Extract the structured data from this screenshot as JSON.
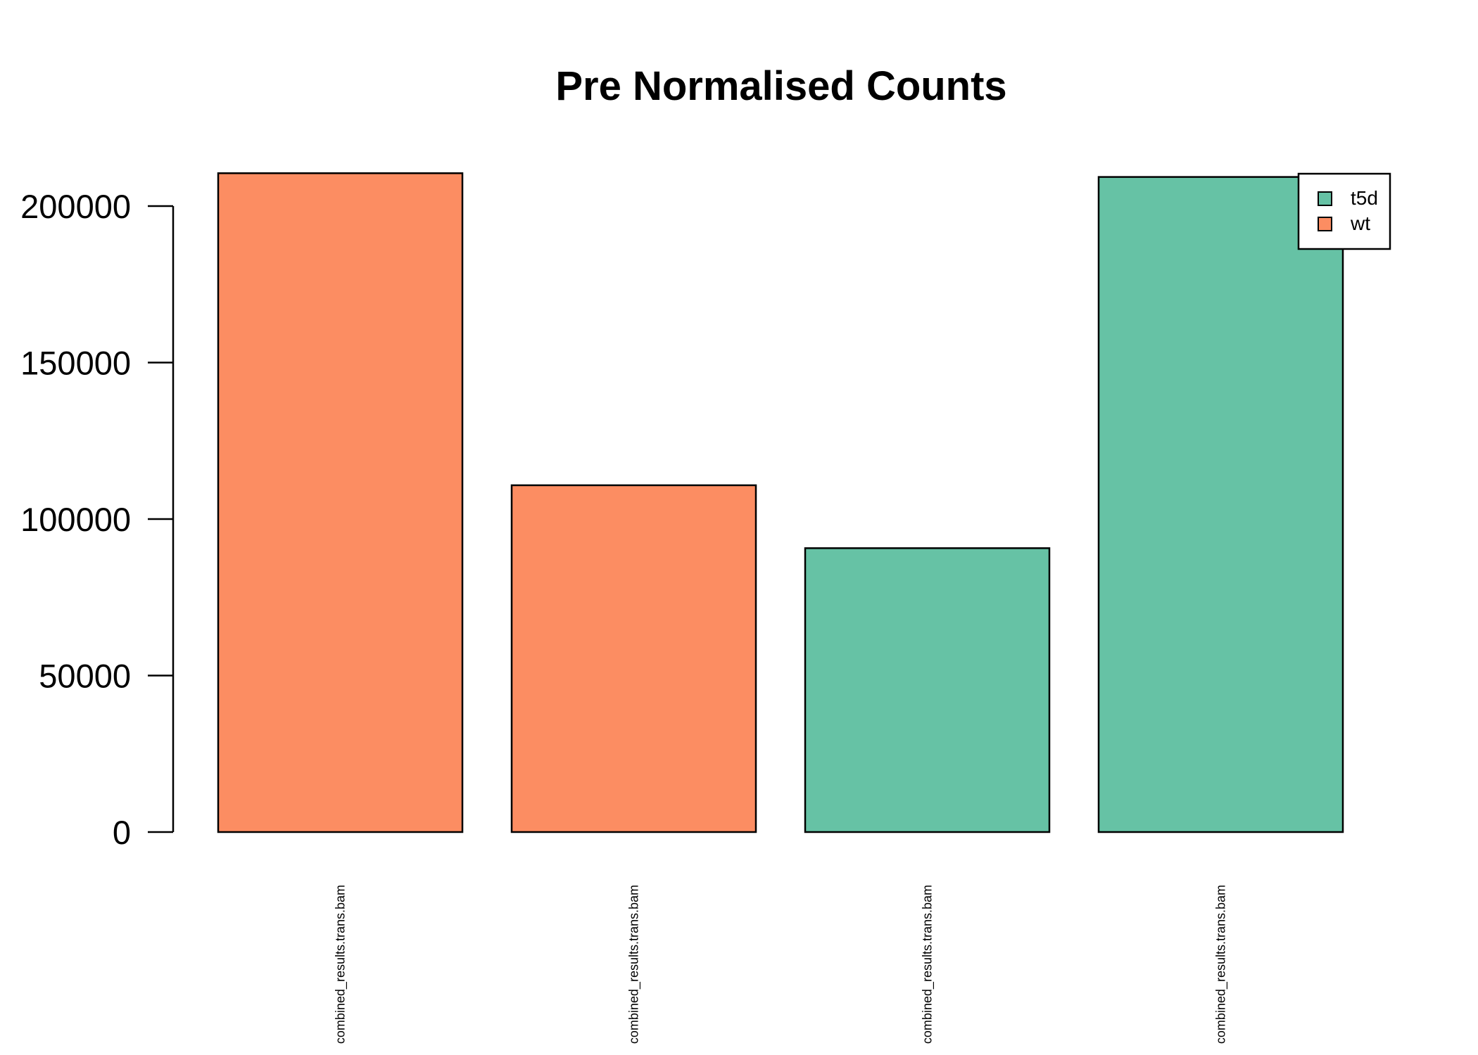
{
  "chart_data": {
    "type": "bar",
    "title": "Pre Normalised Counts",
    "xlabel": "",
    "ylabel": "",
    "categories": [
      "combined_results.trans.bam",
      "combined_results.trans.bam",
      "combined_results.trans.bam",
      "combined_results.trans.bam"
    ],
    "values": [
      210500,
      110800,
      90700,
      209300
    ],
    "groups": [
      "wt",
      "wt",
      "t5d",
      "t5d"
    ],
    "yticks": [
      0,
      50000,
      100000,
      150000,
      200000
    ],
    "ylim": [
      0,
      210500
    ],
    "grid": false,
    "legend": {
      "placement": "top-right",
      "entries": [
        {
          "label": "t5d",
          "color": "#66c2a5"
        },
        {
          "label": "wt",
          "color": "#fc8d62"
        }
      ]
    },
    "colors": {
      "t5d": "#66c2a5",
      "wt": "#fc8d62"
    }
  }
}
